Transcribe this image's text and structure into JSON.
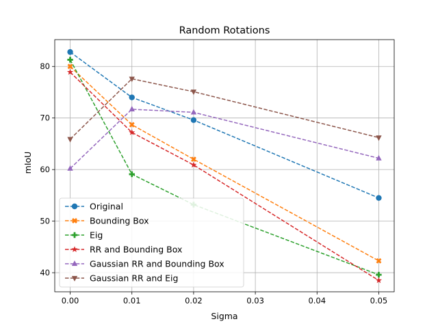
{
  "chart_data": {
    "type": "line",
    "title": "Random Rotations",
    "xlabel": "Sigma",
    "ylabel": "mIoU",
    "x": [
      0.0,
      0.01,
      0.02,
      0.05
    ],
    "xlim": [
      -0.0025,
      0.0525
    ],
    "ylim": [
      36.3,
      85.2
    ],
    "xticks": [
      0.0,
      0.01,
      0.02,
      0.03,
      0.04,
      0.05
    ],
    "xtick_labels": [
      "0.00",
      "0.01",
      "0.02",
      "0.03",
      "0.04",
      "0.05"
    ],
    "yticks": [
      40,
      50,
      60,
      70,
      80
    ],
    "ytick_labels": [
      "40",
      "50",
      "60",
      "70",
      "80"
    ],
    "grid": true,
    "legend_position": "lower-left",
    "series": [
      {
        "name": "Original",
        "values": [
          82.8,
          74.0,
          69.6,
          54.5
        ],
        "color": "#1f77b4",
        "marker": "circle"
      },
      {
        "name": "Bounding Box",
        "values": [
          80.0,
          68.7,
          62.0,
          42.3
        ],
        "color": "#ff7f0e",
        "marker": "x"
      },
      {
        "name": "Eig",
        "values": [
          81.3,
          59.1,
          53.2,
          39.6
        ],
        "color": "#2ca02c",
        "marker": "plus"
      },
      {
        "name": "RR and Bounding Box",
        "values": [
          78.9,
          67.2,
          60.9,
          38.5
        ],
        "color": "#d62728",
        "marker": "star"
      },
      {
        "name": "Gaussian RR and Bounding Box",
        "values": [
          60.2,
          71.7,
          71.1,
          62.2
        ],
        "color": "#9467bd",
        "marker": "triangle-up"
      },
      {
        "name": "Gaussian RR and Eig",
        "values": [
          65.9,
          77.6,
          75.1,
          66.2
        ],
        "color": "#8c564b",
        "marker": "triangle-down"
      }
    ]
  }
}
